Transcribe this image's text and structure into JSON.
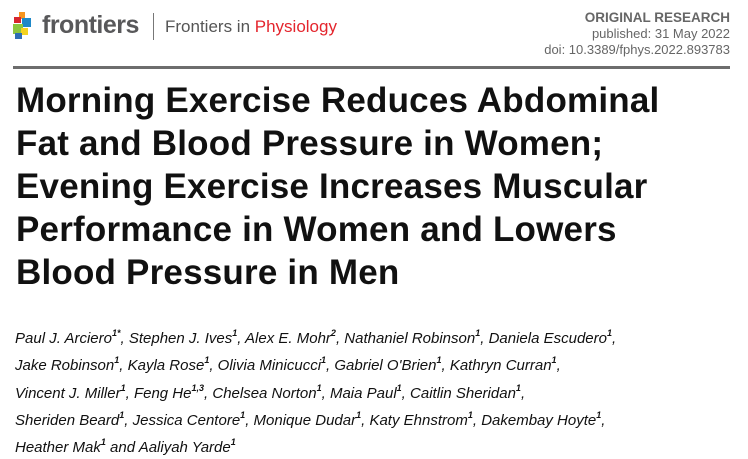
{
  "header": {
    "brand": "frontiers",
    "journal_prefix": "Frontiers in ",
    "journal_name": "Physiology",
    "article_type": "ORIGINAL RESEARCH",
    "published": "published: 31 May 2022",
    "doi": "doi: 10.3389/fphys.2022.893783"
  },
  "title_lines": [
    "Morning Exercise Reduces Abdominal",
    "Fat and Blood Pressure in Women;",
    "Evening Exercise Increases Muscular",
    "Performance in Women and Lowers",
    "Blood Pressure in Men"
  ],
  "author_lines": [
    [
      {
        "name": "Paul J. Arciero",
        "aff": "1*"
      },
      {
        "name": "Stephen J. Ives",
        "aff": "1"
      },
      {
        "name": "Alex E. Mohr",
        "aff": "2"
      },
      {
        "name": "Nathaniel Robinson",
        "aff": "1"
      },
      {
        "name": "Daniela Escudero",
        "aff": "1"
      }
    ],
    [
      {
        "name": "Jake Robinson",
        "aff": "1"
      },
      {
        "name": "Kayla Rose",
        "aff": "1"
      },
      {
        "name": "Olivia Minicucci",
        "aff": "1"
      },
      {
        "name": "Gabriel O'Brien",
        "aff": "1"
      },
      {
        "name": "Kathryn Curran",
        "aff": "1"
      }
    ],
    [
      {
        "name": "Vincent J. Miller",
        "aff": "1"
      },
      {
        "name": "Feng He",
        "aff": "1,3"
      },
      {
        "name": "Chelsea Norton",
        "aff": "1"
      },
      {
        "name": "Maia Paul",
        "aff": "1"
      },
      {
        "name": "Caitlin Sheridan",
        "aff": "1"
      }
    ],
    [
      {
        "name": "Sheriden Beard",
        "aff": "1"
      },
      {
        "name": "Jessica Centore",
        "aff": "1"
      },
      {
        "name": "Monique Dudar",
        "aff": "1"
      },
      {
        "name": "Katy Ehnstrom",
        "aff": "1"
      },
      {
        "name": "Dakembay Hoyte",
        "aff": "1"
      }
    ],
    [
      {
        "name": "Heather Mak",
        "aff": "1"
      },
      {
        "name": "Aaliyah Yarde",
        "aff": "1"
      }
    ]
  ],
  "final_conjunction": " and ",
  "colors": {
    "accent_red": "#e4252d",
    "gray": "#58585a"
  }
}
